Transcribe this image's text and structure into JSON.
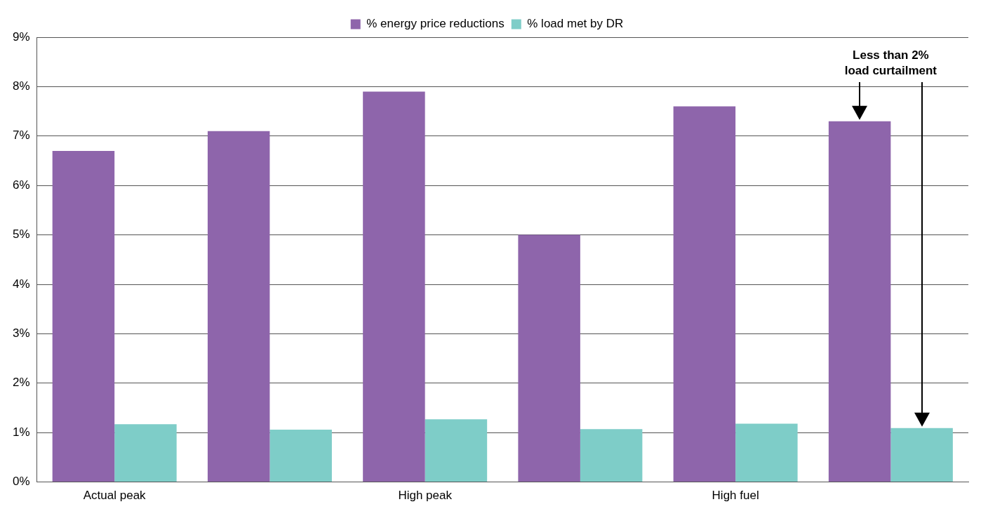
{
  "chart_data": {
    "type": "bar",
    "categories": [
      "Actual peak",
      null,
      "High peak",
      null,
      "High fuel",
      null
    ],
    "series": [
      {
        "name": "% energy price reductions",
        "color": "#8e65ab",
        "values": [
          6.7,
          7.1,
          7.9,
          5.0,
          7.6,
          7.3
        ]
      },
      {
        "name": "% load met by DR",
        "color": "#7ecdc8",
        "values": [
          1.17,
          1.06,
          1.27,
          1.07,
          1.18,
          1.09
        ]
      }
    ],
    "ylim": [
      0,
      9
    ],
    "yticks": [
      {
        "value": 0,
        "label": "0%"
      },
      {
        "value": 1,
        "label": "1%"
      },
      {
        "value": 2,
        "label": "2%"
      },
      {
        "value": 3,
        "label": "3%"
      },
      {
        "value": 4,
        "label": "4%"
      },
      {
        "value": 5,
        "label": "5%"
      },
      {
        "value": 6,
        "label": "6%"
      },
      {
        "value": 7,
        "label": "7%"
      },
      {
        "value": 8,
        "label": "8%"
      },
      {
        "value": 9,
        "label": "9%"
      }
    ],
    "grid": "y",
    "legend": "top",
    "annotations": [
      "Less than 2%\nload curtailment"
    ]
  }
}
